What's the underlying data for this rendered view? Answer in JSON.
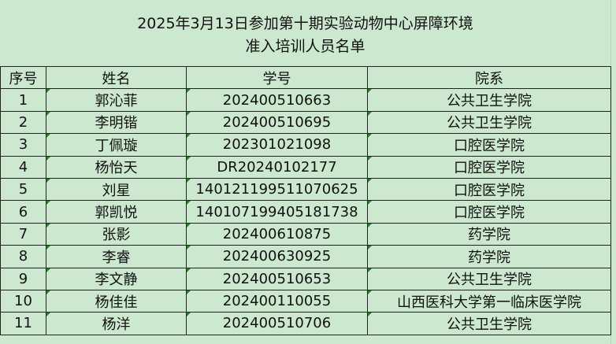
{
  "title": {
    "line1": "2025年3月13日参加第十期实验动物中心屏障环境",
    "line2": "准入培训人员名单"
  },
  "headers": [
    "序号",
    "姓名",
    "学号",
    "院系"
  ],
  "rows": [
    [
      "1",
      "郭沁菲",
      "202400510663",
      "公共卫生学院"
    ],
    [
      "2",
      "李明锴",
      "202400510695",
      "公共卫生学院"
    ],
    [
      "3",
      "丁佩璇",
      "202301021098",
      "口腔医学院"
    ],
    [
      "4",
      "杨怡天",
      "DR20240102177",
      "口腔医学院"
    ],
    [
      "5",
      "刘星",
      "140121199511070625",
      "口腔医学院"
    ],
    [
      "6",
      "郭凯悦",
      "140107199405181738",
      "口腔医学院"
    ],
    [
      "7",
      "张影",
      "202400610875",
      "药学院"
    ],
    [
      "8",
      "李睿",
      "202400630925",
      "药学院"
    ],
    [
      "9",
      "李文静",
      "202400510653",
      "公共卫生学院"
    ],
    [
      "10",
      "杨佳佳",
      "202400110055",
      "山西医科大学第一临床医学院"
    ],
    [
      "11",
      "杨洋",
      "202400510706",
      "公共卫生学院"
    ]
  ],
  "colors": {
    "background": "#cce8cf",
    "error_marker": "#1a8a1a"
  }
}
